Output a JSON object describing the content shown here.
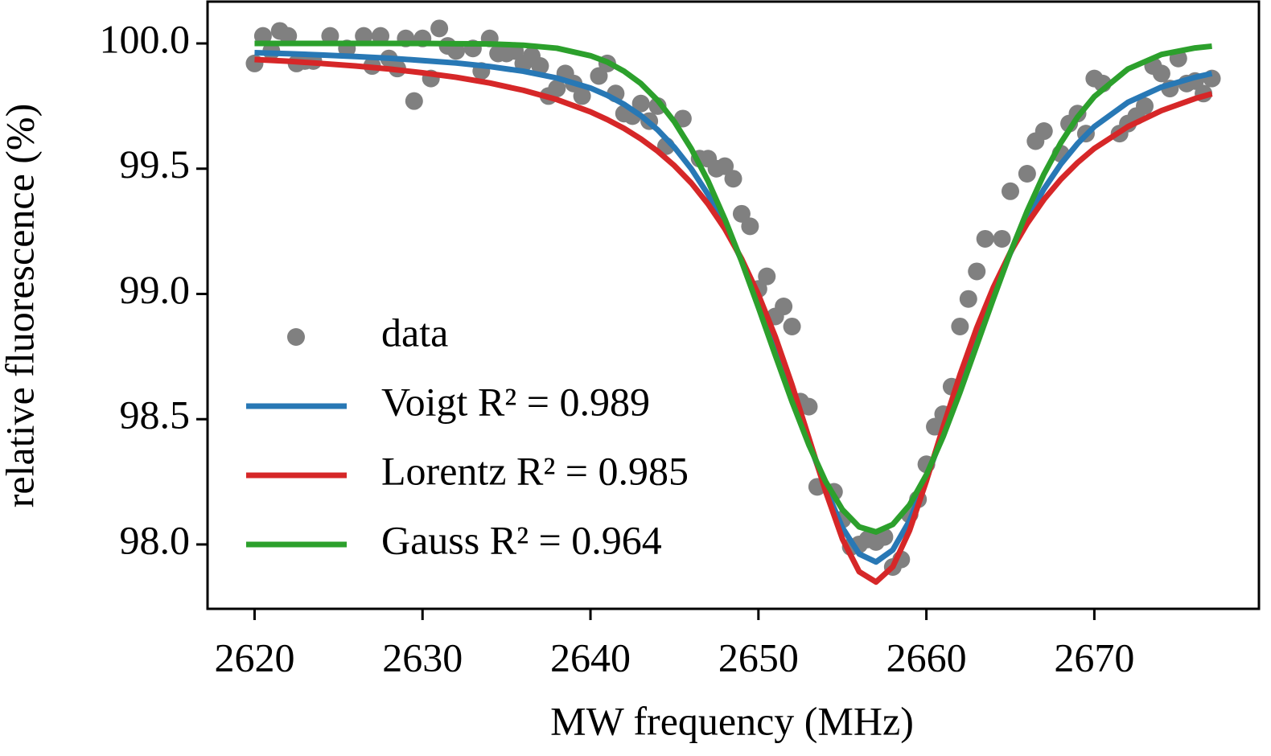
{
  "chart_data": {
    "type": "scatter",
    "xlabel": "MW frequency (MHz)",
    "ylabel": "relative fluorescence (%)",
    "xlim": [
      2617.2,
      2679.8
    ],
    "ylim": [
      97.743,
      100.167
    ],
    "xticks": [
      2620,
      2630,
      2640,
      2650,
      2660,
      2670
    ],
    "yticks": [
      {
        "value": 98.0,
        "label": "98.0"
      },
      98.5,
      {
        "value": 99.0,
        "label": "99.0"
      },
      99.5,
      {
        "value": 100.0,
        "label": "100.0"
      }
    ],
    "legend": "lower left",
    "series": [
      {
        "name": "data",
        "type": "scatter",
        "color": "#808080",
        "x": [
          2620.0,
          2620.5,
          2621.0,
          2621.5,
          2622.0,
          2622.5,
          2623.0,
          2623.5,
          2624.5,
          2625.5,
          2626.5,
          2627.0,
          2627.5,
          2628.0,
          2628.5,
          2629.0,
          2629.5,
          2630.0,
          2630.5,
          2631.0,
          2631.5,
          2632.0,
          2633.0,
          2633.5,
          2634.0,
          2634.5,
          2635.0,
          2635.5,
          2636.0,
          2636.5,
          2637.0,
          2637.5,
          2638.0,
          2638.5,
          2639.0,
          2639.5,
          2640.5,
          2641.0,
          2641.5,
          2642.0,
          2642.5,
          2643.0,
          2643.5,
          2644.0,
          2644.5,
          2645.5,
          2646.5,
          2647.0,
          2647.5,
          2648.0,
          2648.5,
          2649.0,
          2649.5,
          2650.0,
          2650.5,
          2651.0,
          2651.5,
          2652.0,
          2652.5,
          2653.0,
          2653.5,
          2654.5,
          2655.0,
          2655.5,
          2656.0,
          2656.5,
          2657.0,
          2657.5,
          2658.0,
          2658.5,
          2659.0,
          2659.5,
          2660.0,
          2660.5,
          2661.0,
          2661.5,
          2662.0,
          2662.5,
          2663.0,
          2663.5,
          2664.5,
          2665.0,
          2666.0,
          2666.5,
          2667.0,
          2668.0,
          2668.5,
          2669.0,
          2669.5,
          2670.0,
          2670.5,
          2671.5,
          2672.0,
          2672.5,
          2673.0,
          2673.5,
          2674.0,
          2674.5,
          2675.0,
          2675.5,
          2676.0,
          2676.5,
          2677.0
        ],
        "values": [
          99.92,
          100.03,
          99.97,
          100.05,
          100.03,
          99.92,
          99.93,
          99.93,
          100.03,
          99.98,
          100.03,
          99.91,
          100.03,
          99.94,
          99.9,
          100.02,
          99.77,
          100.02,
          99.86,
          100.06,
          99.99,
          99.97,
          99.98,
          99.89,
          100.02,
          99.96,
          99.96,
          99.97,
          99.92,
          99.95,
          99.91,
          99.79,
          99.82,
          99.88,
          99.84,
          99.79,
          99.87,
          99.92,
          99.8,
          99.72,
          99.71,
          99.76,
          99.69,
          99.75,
          99.59,
          99.7,
          99.54,
          99.54,
          99.5,
          99.51,
          99.46,
          99.32,
          99.27,
          99.02,
          99.07,
          98.91,
          98.95,
          98.87,
          98.57,
          98.55,
          98.23,
          98.21,
          98.1,
          97.99,
          98.0,
          98.02,
          98.01,
          98.03,
          97.91,
          97.94,
          98.12,
          98.18,
          98.32,
          98.47,
          98.52,
          98.63,
          98.87,
          98.98,
          99.09,
          99.22,
          99.22,
          99.41,
          99.48,
          99.61,
          99.65,
          99.56,
          99.68,
          99.72,
          99.64,
          99.86,
          99.84,
          99.64,
          99.68,
          99.71,
          99.75,
          99.91,
          99.88,
          99.82,
          99.94,
          99.84,
          99.85,
          99.8,
          99.86
        ]
      },
      {
        "name": "Voigt R² = 0.989",
        "type": "line",
        "color": "#2878b5",
        "x": [
          2620,
          2622,
          2624,
          2626,
          2628,
          2630,
          2632,
          2634,
          2636,
          2638,
          2640,
          2641,
          2642,
          2643,
          2644,
          2645,
          2646,
          2647,
          2648,
          2649,
          2650,
          2651,
          2652,
          2653,
          2654,
          2655,
          2656,
          2657,
          2658,
          2659,
          2660,
          2661,
          2662,
          2663,
          2664,
          2665,
          2666,
          2667,
          2668,
          2669,
          2670,
          2672,
          2674,
          2676,
          2677
        ],
        "values": [
          99.963,
          99.959,
          99.954,
          99.948,
          99.941,
          99.932,
          99.922,
          99.908,
          99.889,
          99.862,
          99.822,
          99.793,
          99.757,
          99.712,
          99.655,
          99.585,
          99.5,
          99.397,
          99.275,
          99.134,
          98.973,
          98.796,
          98.605,
          98.41,
          98.224,
          98.067,
          97.962,
          97.93,
          97.978,
          98.095,
          98.26,
          98.449,
          98.644,
          98.833,
          99.007,
          99.163,
          99.301,
          99.419,
          99.518,
          99.6,
          99.668,
          99.765,
          99.826,
          99.865,
          99.88
        ]
      },
      {
        "name": "Lorentz R² = 0.985",
        "type": "line",
        "color": "#d62728",
        "x": [
          2620,
          2622,
          2624,
          2626,
          2628,
          2630,
          2632,
          2634,
          2636,
          2638,
          2640,
          2641,
          2642,
          2643,
          2644,
          2645,
          2646,
          2647,
          2648,
          2649,
          2650,
          2651,
          2652,
          2653,
          2654,
          2655,
          2656,
          2657,
          2658,
          2659,
          2660,
          2661,
          2662,
          2663,
          2664,
          2665,
          2666,
          2667,
          2668,
          2669,
          2670,
          2672,
          2674,
          2676,
          2677
        ],
        "values": [
          99.936,
          99.929,
          99.92,
          99.91,
          99.898,
          99.883,
          99.865,
          99.842,
          99.813,
          99.776,
          99.727,
          99.696,
          99.661,
          99.619,
          99.57,
          99.512,
          99.443,
          99.359,
          99.26,
          99.14,
          98.997,
          98.83,
          98.637,
          98.426,
          98.212,
          98.022,
          97.891,
          97.85,
          97.911,
          98.056,
          98.254,
          98.469,
          98.677,
          98.865,
          99.028,
          99.166,
          99.281,
          99.377,
          99.457,
          99.524,
          99.581,
          99.668,
          99.732,
          99.78,
          99.799
        ]
      },
      {
        "name": "Gauss R² = 0.964",
        "type": "line",
        "color": "#2ca02c",
        "x": [
          2620,
          2622,
          2624,
          2626,
          2628,
          2630,
          2632,
          2634,
          2636,
          2638,
          2640,
          2641,
          2642,
          2643,
          2644,
          2645,
          2646,
          2647,
          2648,
          2649,
          2650,
          2651,
          2652,
          2653,
          2654,
          2655,
          2656,
          2657,
          2658,
          2659,
          2660,
          2661,
          2662,
          2663,
          2664,
          2665,
          2666,
          2667,
          2668,
          2669,
          2670,
          2672,
          2674,
          2676,
          2677
        ],
        "values": [
          100.0,
          100.0,
          100.0,
          100.0,
          100.0,
          100.0,
          99.999,
          99.998,
          99.993,
          99.981,
          99.951,
          99.926,
          99.889,
          99.84,
          99.773,
          99.687,
          99.58,
          99.451,
          99.299,
          99.13,
          98.946,
          98.756,
          98.57,
          98.398,
          98.251,
          98.139,
          98.07,
          98.05,
          98.08,
          98.158,
          98.278,
          98.431,
          98.607,
          98.795,
          98.983,
          99.165,
          99.331,
          99.478,
          99.603,
          99.706,
          99.788,
          99.898,
          99.956,
          99.982,
          99.989
        ]
      }
    ]
  }
}
